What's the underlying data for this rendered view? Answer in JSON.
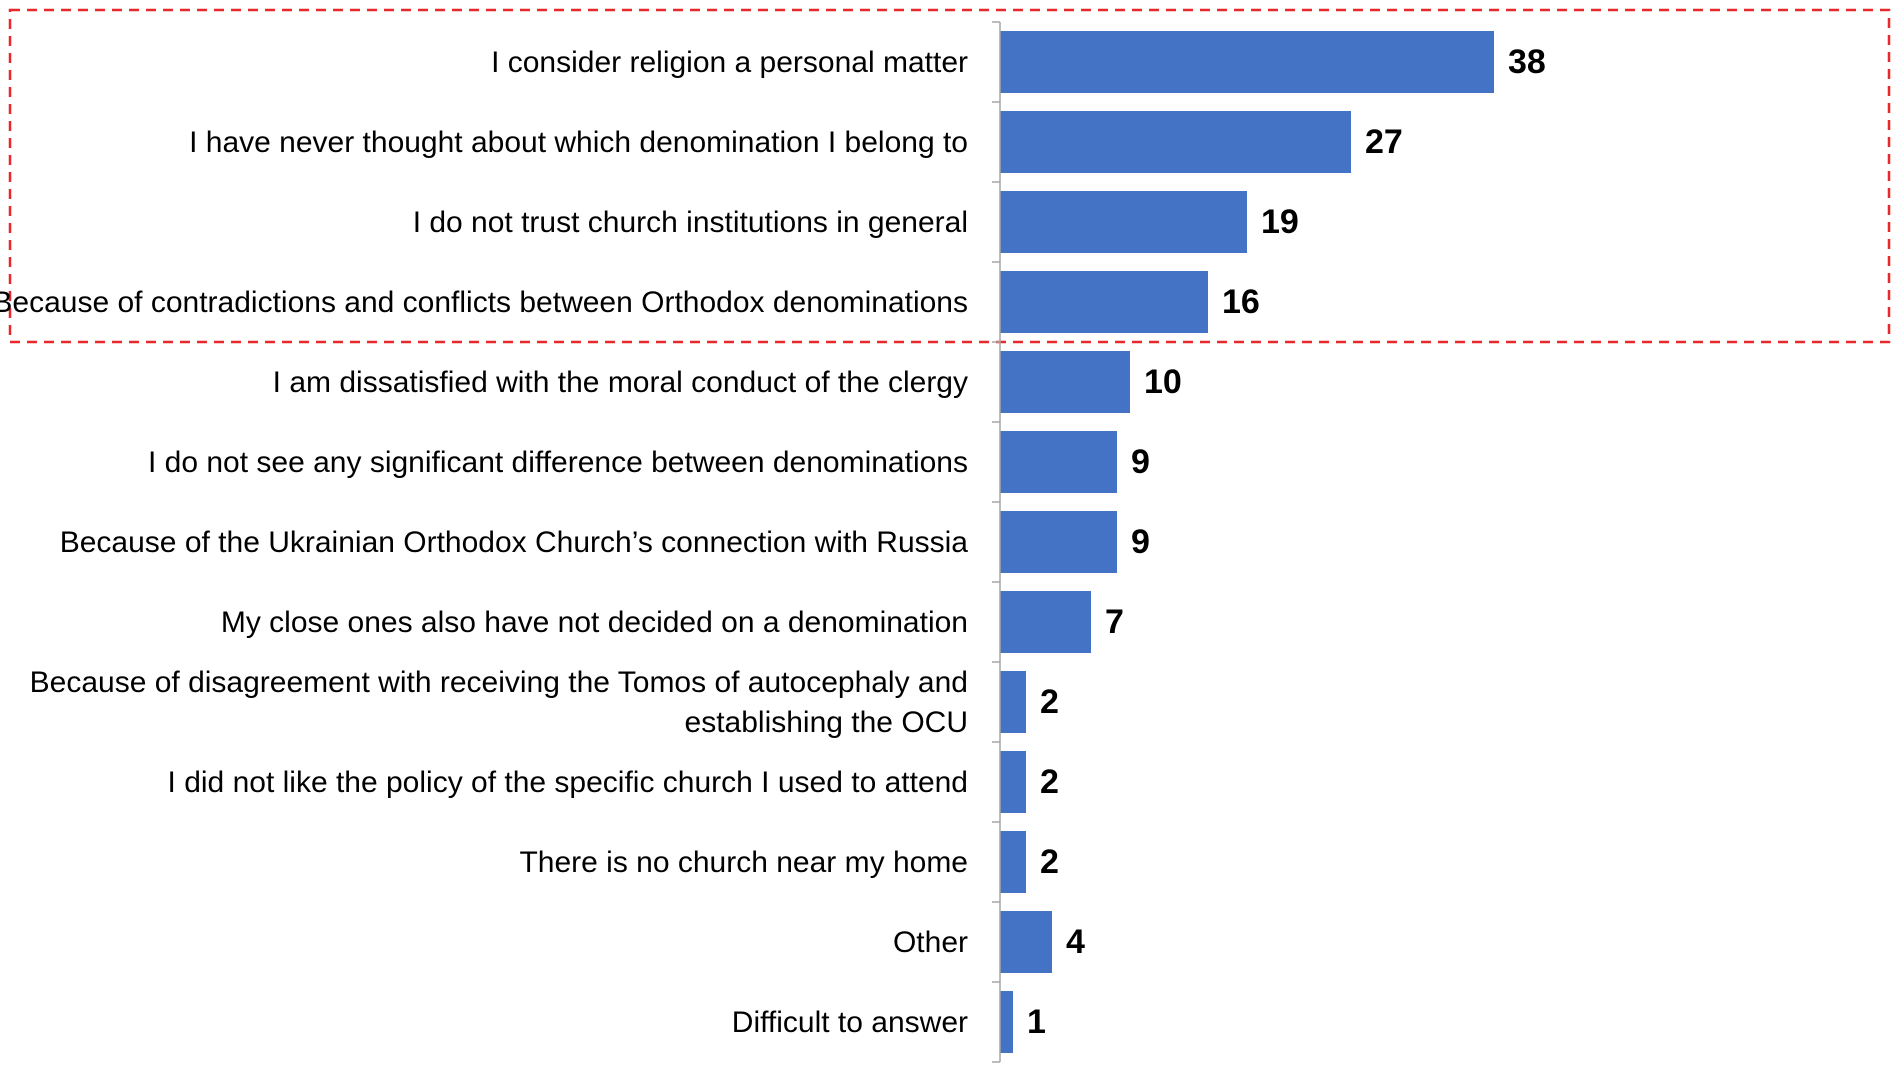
{
  "chart_data": {
    "type": "bar",
    "orientation": "horizontal",
    "categories": [
      "I consider religion a personal matter",
      "I have never thought about which denomination I belong to",
      "I do not trust church institutions in general",
      "Because of contradictions and conflicts between Orthodox denominations",
      "I am dissatisfied with the moral conduct of the clergy",
      "I do not see any significant difference between denominations",
      "Because of the Ukrainian Orthodox Church’s connection with Russia",
      "My close ones also have not decided on a denomination",
      "Because of disagreement with receiving the Tomos of autocephaly and establishing the OCU",
      "I did not like the policy of the specific church I used to attend",
      "There is no church near my home",
      "Other",
      "Difficult to answer"
    ],
    "category_lines": [
      [
        "I consider religion a personal matter"
      ],
      [
        "I have never thought about which denomination I belong to"
      ],
      [
        "I do not trust church institutions in general"
      ],
      [
        "Because of contradictions and conflicts between Orthodox denominations"
      ],
      [
        "I am dissatisfied with the moral conduct of the clergy"
      ],
      [
        "I do not see any significant difference between denominations"
      ],
      [
        "Because of the Ukrainian Orthodox Church’s connection with Russia"
      ],
      [
        "My close ones also have not decided on a denomination"
      ],
      [
        "Because of disagreement with receiving the Tomos of autocephaly and",
        "establishing the OCU"
      ],
      [
        "I did not like the policy of the specific church I used to attend"
      ],
      [
        "There is no church near my home"
      ],
      [
        "Other"
      ],
      [
        "Difficult to answer"
      ]
    ],
    "values": [
      38,
      27,
      19,
      16,
      10,
      9,
      9,
      7,
      2,
      2,
      2,
      4,
      1
    ],
    "data_labels": [
      "38",
      "27",
      "19",
      "16",
      "10",
      "9",
      "9",
      "7",
      "2",
      "2",
      "2",
      "4",
      "1"
    ],
    "highlight": {
      "style": "dashed-box",
      "categories_from": 0,
      "categories_to": 3
    },
    "title": "",
    "xlabel": "",
    "ylabel": "",
    "xlim": [
      0,
      40
    ],
    "grid": false,
    "legend": "none"
  },
  "colors": {
    "bar": "#4472C4",
    "highlight_border": "#E8282B",
    "axis": "#A6A6A6",
    "text": "#000000"
  }
}
